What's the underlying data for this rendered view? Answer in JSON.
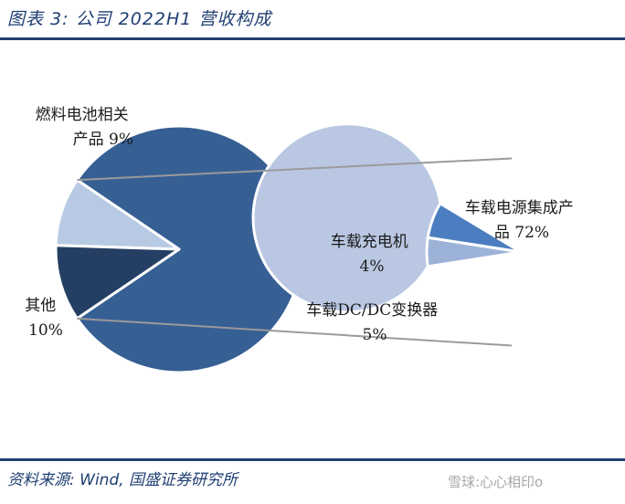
{
  "header": {
    "title": "图表 3:  公司 2022H1 营收构成"
  },
  "footer": {
    "source": "资料来源:  Wind, 国盛证券研究所",
    "watermark": "雪球:心心相印o"
  },
  "chart_data": {
    "type": "pie",
    "variant": "bar-of-pie",
    "slices": [
      {
        "lines": [
          "燃料电池相关",
          "产品  9%"
        ],
        "value": 9,
        "color": "#b8cae3"
      },
      {
        "lines": [
          "其他",
          "10%"
        ],
        "value": 10,
        "color": "#243f63"
      },
      {
        "lines": [
          "车载充电机",
          "4%"
        ],
        "value": 4,
        "color": "#9cb2d9"
      },
      {
        "lines": [
          "车载DC/DC变换器",
          "5%"
        ],
        "value": 5,
        "color": "#4c7dc0"
      },
      {
        "lines": [
          "车载电源集成产",
          "品  72%"
        ],
        "value": 72,
        "color": "#b9c7e2"
      }
    ],
    "main_pie_colors": {
      "aggregated": "#365f94",
      "border": "#ffffff"
    },
    "connector_color": "#9a9a9a"
  }
}
